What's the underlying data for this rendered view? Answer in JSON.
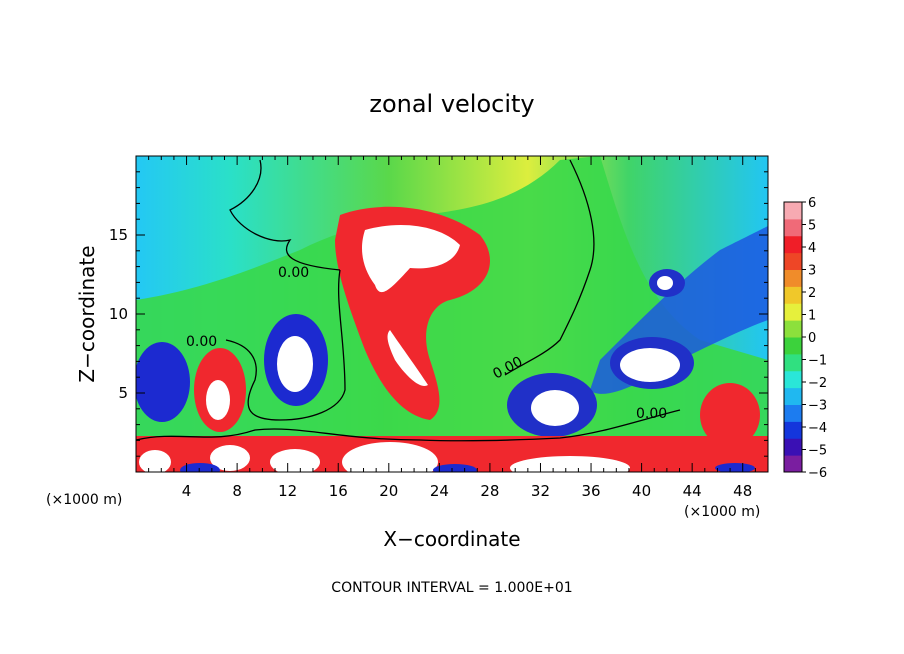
{
  "chart_data": {
    "type": "heatmap",
    "title": "zonal velocity",
    "xlabel": "X−coordinate",
    "ylabel": "Z−coordinate",
    "x_unit_left": "(×1000 m)",
    "x_unit_right": "(×1000 m)",
    "footer": "CONTOUR INTERVAL = 1.000E+01",
    "xlim": [
      0,
      50
    ],
    "ylim": [
      0,
      20
    ],
    "x_ticks": [
      "4",
      "8",
      "12",
      "16",
      "20",
      "24",
      "28",
      "32",
      "36",
      "40",
      "44",
      "48"
    ],
    "y_ticks": [
      "5",
      "10",
      "15"
    ],
    "colorbar": {
      "min": -6,
      "max": 6,
      "ticks": [
        "6",
        "5",
        "4",
        "3",
        "2",
        "1",
        "0",
        "−1",
        "−2",
        "−3",
        "−4",
        "−5",
        "−6"
      ],
      "colors": [
        "#7a1ea0",
        "#3a10b4",
        "#1436dc",
        "#1c7cf0",
        "#20b8f0",
        "#2ae6d8",
        "#30e080",
        "#3cd23c",
        "#8ce03c",
        "#e6f03c",
        "#f0c82a",
        "#f08c2a",
        "#ee4626",
        "#f01e28",
        "#f06a78",
        "#f7aab2"
      ]
    },
    "contour_labels": [
      "0.00",
      "0.00",
      "0.00",
      "0.00"
    ],
    "features": [
      {
        "kind": "positive_max",
        "x": 21,
        "z": 14.6,
        "value": 6
      },
      {
        "kind": "positive_max",
        "x": 22.5,
        "z": 7.2,
        "value": 6
      },
      {
        "kind": "positive_max",
        "x": 7,
        "z": 4.6,
        "value": 6
      },
      {
        "kind": "negative_min",
        "x": 13,
        "z": 6.9,
        "value": -6
      },
      {
        "kind": "negative_min",
        "x": 2.2,
        "z": 6,
        "value": -6
      },
      {
        "kind": "negative_min",
        "x": 33.5,
        "z": 4.2,
        "value": -6
      },
      {
        "kind": "negative_min",
        "x": 41.5,
        "z": 6.5,
        "value": -6
      },
      {
        "kind": "negative_min",
        "x": 42,
        "z": 12,
        "value": -6
      },
      {
        "kind": "surface_max",
        "x": 20,
        "z": 0.9,
        "value": 6
      },
      {
        "kind": "surface_max",
        "x": 33,
        "z": 0.6,
        "value": 6
      },
      {
        "kind": "surface_max",
        "x": 2.8,
        "z": 0.8,
        "value": 6
      },
      {
        "kind": "surface_max",
        "x": 9.5,
        "z": 1,
        "value": 6
      },
      {
        "kind": "surface_max",
        "x": 14,
        "z": 0.7,
        "value": 6
      },
      {
        "kind": "surface_max",
        "x": 46,
        "z": 3.2,
        "value": 5
      }
    ]
  }
}
